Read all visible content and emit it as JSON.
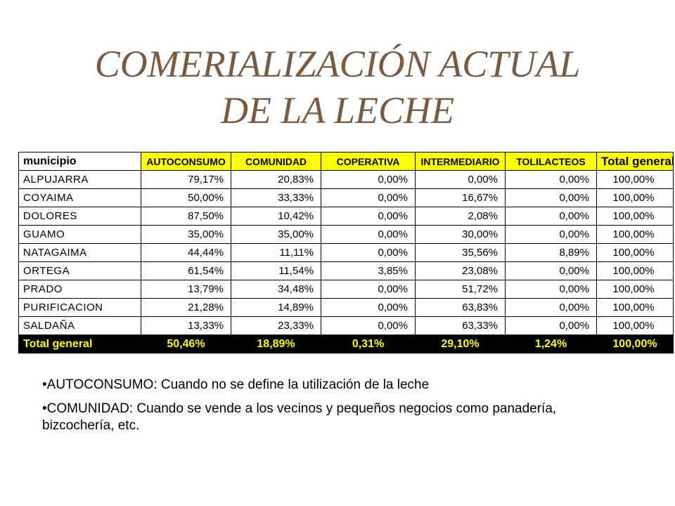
{
  "title": {
    "line1": "COMERIALIZACIÓN ACTUAL",
    "line2": "DE LA LECHE"
  },
  "table": {
    "headers": [
      "municipio",
      "AUTOCONSUMO",
      "COMUNIDAD",
      "COPERATIVA",
      "INTERMEDIARIO",
      "TOLILACTEOS",
      "Total general"
    ],
    "rows": [
      [
        "ALPUJARRA",
        "79,17%",
        "20,83%",
        "0,00%",
        "0,00%",
        "0,00%",
        "100,00%"
      ],
      [
        "COYAIMA",
        "50,00%",
        "33,33%",
        "0,00%",
        "16,67%",
        "0,00%",
        "100,00%"
      ],
      [
        "DOLORES",
        "87,50%",
        "10,42%",
        "0,00%",
        "2,08%",
        "0,00%",
        "100,00%"
      ],
      [
        "GUAMO",
        "35,00%",
        "35,00%",
        "0,00%",
        "30,00%",
        "0,00%",
        "100,00%"
      ],
      [
        "NATAGAIMA",
        "44,44%",
        "11,11%",
        "0,00%",
        "35,56%",
        "8,89%",
        "100,00%"
      ],
      [
        "ORTEGA",
        "61,54%",
        "11,54%",
        "3,85%",
        "23,08%",
        "0,00%",
        "100,00%"
      ],
      [
        "PRADO",
        "13,79%",
        "34,48%",
        "0,00%",
        "51,72%",
        "0,00%",
        "100,00%"
      ],
      [
        "PURIFICACION",
        "21,28%",
        "14,89%",
        "0,00%",
        "63,83%",
        "0,00%",
        "100,00%"
      ],
      [
        "SALDAÑA",
        "13,33%",
        "23,33%",
        "0,00%",
        "63,33%",
        "0,00%",
        "100,00%"
      ]
    ],
    "total": [
      "Total general",
      "50,46%",
      "18,89%",
      "0,31%",
      "29,10%",
      "1,24%",
      "100,00%"
    ]
  },
  "notes": [
    {
      "bullet": "•",
      "text": "AUTOCONSUMO: Cuando no se define la utilización de la leche"
    },
    {
      "bullet": "•",
      "text": "COMUNIDAD: Cuando se vende a los vecinos y pequeños negocios como panadería, bizcochería, etc."
    }
  ],
  "colors": {
    "title": "#7b5a40",
    "header_highlight": "#ffff00",
    "total_row_bg": "#000000",
    "total_row_text": "#ffff00"
  }
}
